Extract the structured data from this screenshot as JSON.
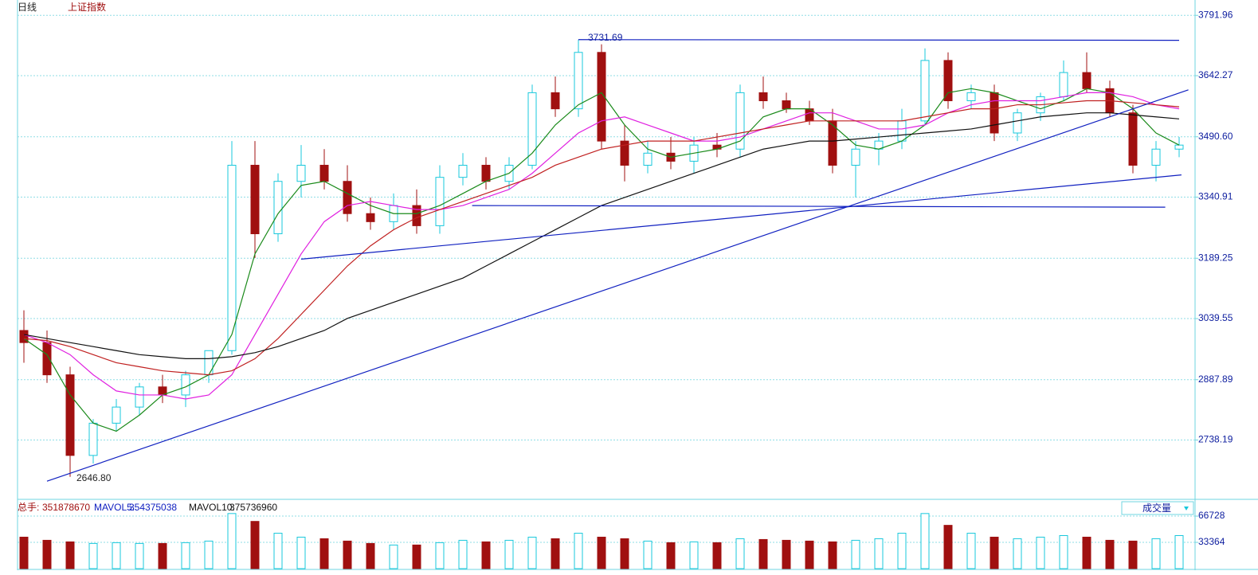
{
  "chart_data": {
    "type": "candlestick",
    "period": "日线",
    "title": "上证指数",
    "ylim": [
      2593,
      3830
    ],
    "yticks": [
      {
        "value": 2738.19,
        "label": "2738.19"
      },
      2887.89,
      {
        "value": 3039.55,
        "label": "3039.55"
      },
      3189.25,
      {
        "value": 3340.91,
        "label": "3340.91"
      },
      {
        "value": 3490.6,
        "label": "3490.60"
      },
      3642.27,
      3791.96
    ],
    "grid": true,
    "up_color": "#19c8dc",
    "down_color": "#a01010",
    "open": [
      3010,
      2980,
      2900,
      2700,
      2780,
      2820,
      2870,
      2850,
      2900,
      2960,
      3420,
      3250,
      3380,
      3420,
      3380,
      3300,
      3280,
      3320,
      3270,
      3390,
      3420,
      3380,
      3420,
      3600,
      3560,
      3700,
      3480,
      3420,
      3450,
      3430,
      3470,
      3460,
      3600,
      3580,
      3560,
      3530,
      3420,
      3460,
      3480,
      3530,
      3680,
      3580,
      3600,
      3500,
      3550,
      3590,
      3650,
      3610,
      3550,
      3420,
      3460
    ],
    "high": [
      3060,
      3010,
      2920,
      2790,
      2840,
      2880,
      2900,
      2910,
      2960,
      3480,
      3480,
      3400,
      3470,
      3460,
      3420,
      3340,
      3350,
      3360,
      3420,
      3450,
      3440,
      3440,
      3620,
      3640,
      3731.69,
      3720,
      3520,
      3480,
      3490,
      3490,
      3500,
      3620,
      3640,
      3600,
      3580,
      3560,
      3480,
      3500,
      3560,
      3710,
      3700,
      3620,
      3620,
      3560,
      3600,
      3680,
      3700,
      3630,
      3570,
      3480,
      3490
    ],
    "low": [
      2930,
      2880,
      2646.8,
      2680,
      2760,
      2800,
      2830,
      2820,
      2880,
      2950,
      3190,
      3230,
      3340,
      3360,
      3280,
      3260,
      3260,
      3250,
      3250,
      3370,
      3360,
      3360,
      3410,
      3540,
      3540,
      3460,
      3380,
      3400,
      3410,
      3400,
      3440,
      3440,
      3560,
      3550,
      3520,
      3400,
      3340,
      3420,
      3460,
      3520,
      3560,
      3560,
      3480,
      3480,
      3530,
      3580,
      3600,
      3540,
      3400,
      3380,
      3440
    ],
    "close": [
      2980,
      2900,
      2700,
      2780,
      2820,
      2870,
      2850,
      2900,
      2960,
      3420,
      3250,
      3380,
      3420,
      3380,
      3300,
      3280,
      3320,
      3270,
      3390,
      3420,
      3380,
      3420,
      3600,
      3560,
      3700,
      3480,
      3420,
      3450,
      3430,
      3470,
      3460,
      3600,
      3580,
      3560,
      3530,
      3420,
      3460,
      3480,
      3530,
      3680,
      3580,
      3600,
      3500,
      3550,
      3590,
      3650,
      3610,
      3550,
      3420,
      3460,
      3470
    ],
    "series": [
      {
        "color": "#1a8a1a",
        "values": [
          2990,
          2950,
          2850,
          2780,
          2760,
          2800,
          2850,
          2870,
          2900,
          3000,
          3200,
          3300,
          3370,
          3380,
          3350,
          3320,
          3300,
          3300,
          3320,
          3350,
          3380,
          3400,
          3450,
          3520,
          3570,
          3600,
          3520,
          3460,
          3440,
          3450,
          3460,
          3480,
          3540,
          3560,
          3560,
          3520,
          3470,
          3460,
          3480,
          3520,
          3600,
          3610,
          3600,
          3580,
          3560,
          3580,
          3610,
          3600,
          3560,
          3500,
          3470
        ]
      },
      {
        "color": "#e020e0",
        "values": [
          3000,
          2980,
          2950,
          2900,
          2860,
          2850,
          2850,
          2840,
          2850,
          2900,
          3000,
          3100,
          3200,
          3280,
          3320,
          3330,
          3320,
          3310,
          3310,
          3320,
          3340,
          3360,
          3400,
          3450,
          3500,
          3530,
          3540,
          3520,
          3500,
          3480,
          3480,
          3490,
          3510,
          3530,
          3550,
          3550,
          3530,
          3510,
          3510,
          3520,
          3550,
          3570,
          3580,
          3580,
          3580,
          3590,
          3600,
          3600,
          3590,
          3570,
          3560
        ]
      },
      {
        "color": "#c02020",
        "values": [
          2990,
          2985,
          2970,
          2950,
          2930,
          2920,
          2910,
          2905,
          2900,
          2910,
          2940,
          2990,
          3050,
          3110,
          3170,
          3220,
          3260,
          3290,
          3310,
          3330,
          3350,
          3370,
          3390,
          3420,
          3440,
          3460,
          3470,
          3480,
          3480,
          3480,
          3490,
          3500,
          3510,
          3520,
          3530,
          3530,
          3530,
          3530,
          3530,
          3540,
          3550,
          3560,
          3560,
          3570,
          3570,
          3575,
          3580,
          3580,
          3575,
          3570,
          3565
        ]
      },
      {
        "color": "#111111",
        "values": [
          3000,
          2990,
          2980,
          2970,
          2960,
          2950,
          2945,
          2940,
          2940,
          2945,
          2955,
          2970,
          2990,
          3010,
          3040,
          3060,
          3080,
          3100,
          3120,
          3140,
          3170,
          3200,
          3230,
          3260,
          3290,
          3320,
          3340,
          3360,
          3380,
          3400,
          3420,
          3440,
          3460,
          3470,
          3480,
          3480,
          3485,
          3490,
          3495,
          3500,
          3505,
          3510,
          3520,
          3530,
          3540,
          3545,
          3550,
          3550,
          3545,
          3540,
          3535
        ]
      }
    ],
    "trendlines": [
      {
        "x": [
          24,
          50
        ],
        "y": [
          3731.69,
          3730
        ]
      },
      {
        "x": [
          1,
          50.4
        ],
        "y": [
          2636,
          3607
        ]
      },
      {
        "x": [
          12,
          50.1
        ],
        "y": [
          3187,
          3396
        ]
      },
      {
        "x": [
          19.4,
          49.4
        ],
        "y": [
          3320,
          3316
        ]
      }
    ],
    "high_mark": {
      "index": 24,
      "value": 3731.69
    },
    "low_mark": {
      "index": 2,
      "value": 2646.8,
      "label": "2646.80"
    },
    "volume": {
      "total_label": "总手:",
      "total": 351878670,
      "mavol5_label": "MAVOL5:",
      "mavol5": 354375038,
      "mavol10_label": "MAVOL10:",
      "mavol10": 375736960,
      "selector": "成交量",
      "ylim": [
        0,
        85000
      ],
      "yticks": [
        33364,
        66728
      ],
      "values": [
        40000,
        36000,
        34000,
        32000,
        33000,
        32000,
        32000,
        33000,
        35000,
        70000,
        60000,
        45000,
        40000,
        38000,
        35000,
        32000,
        30000,
        30000,
        33000,
        36000,
        34000,
        36000,
        40000,
        38000,
        45000,
        40000,
        38000,
        35000,
        33000,
        34000,
        33000,
        38000,
        37000,
        36000,
        35000,
        34000,
        36000,
        38000,
        45000,
        70000,
        55000,
        45000,
        40000,
        38000,
        40000,
        42000,
        40000,
        36000,
        35000,
        38000,
        42000
      ]
    }
  }
}
